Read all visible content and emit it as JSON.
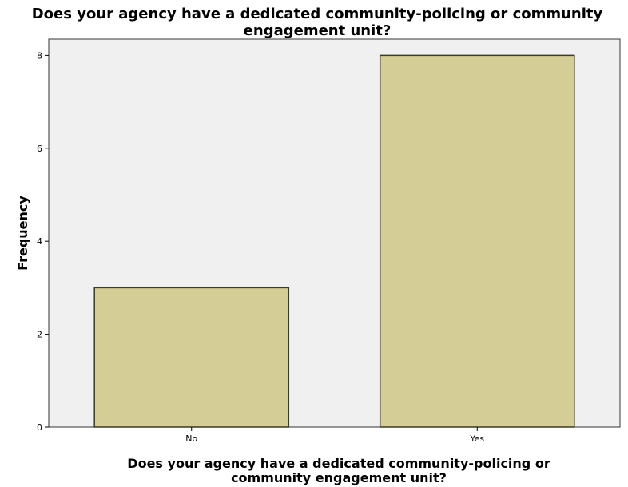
{
  "chart_data": {
    "type": "bar",
    "title_lines": [
      "Does your agency have a dedicated community-policing or community",
      "engagement unit?"
    ],
    "xlabel_lines": [
      "Does your agency have a dedicated community-policing or",
      "community engagement unit?"
    ],
    "ylabel": "Frequency",
    "categories": [
      "No",
      "Yes"
    ],
    "values": [
      3,
      8
    ],
    "ylim": [
      0,
      8.35
    ],
    "yticks": [
      0,
      2,
      4,
      6,
      8
    ],
    "grid": false,
    "colors": {
      "bar_fill": "#d4cd96",
      "bar_stroke": "#3a3a2a",
      "plot_background": "#f0f0f0",
      "plot_border": "#333333"
    }
  }
}
